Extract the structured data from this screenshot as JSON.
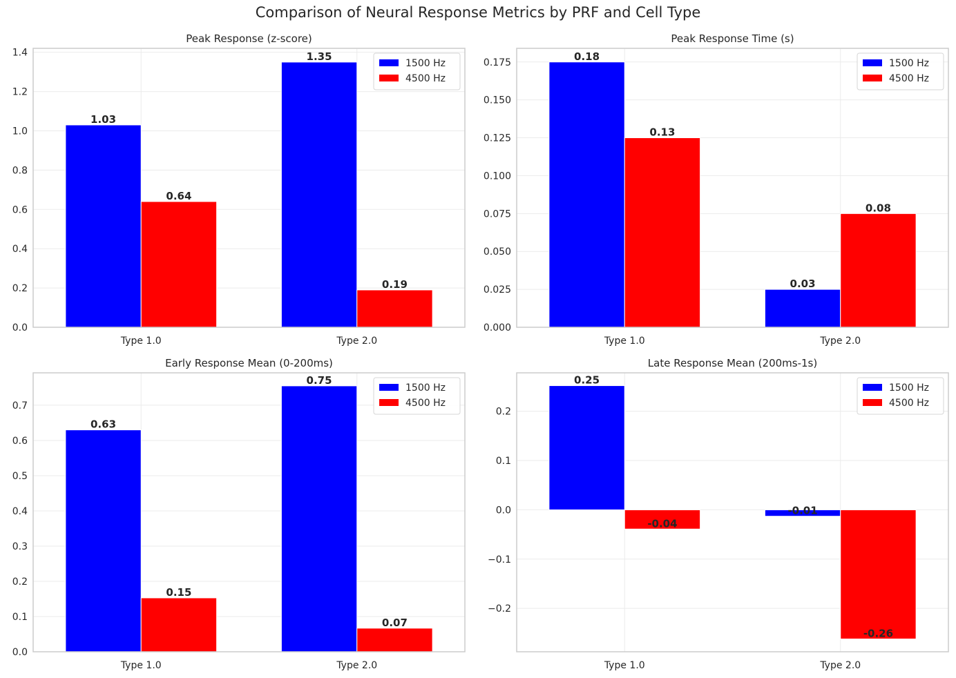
{
  "suptitle": "Comparison of Neural Response Metrics by PRF and Cell Type",
  "colors": {
    "series_1500": "#0000ff",
    "series_4500": "#ff0000",
    "grid": "#ebebeb",
    "spine": "#cccccc"
  },
  "chart_data": [
    {
      "type": "bar",
      "title": "Peak Response (z-score)",
      "categories": [
        "Type 1.0",
        "Type 2.0"
      ],
      "series": [
        {
          "name": "1500 Hz",
          "values": [
            1.03,
            1.35
          ],
          "labels": [
            "1.03",
            "1.35"
          ]
        },
        {
          "name": "4500 Hz",
          "values": [
            0.64,
            0.19
          ],
          "labels": [
            "0.64",
            "0.19"
          ]
        }
      ],
      "ylim": [
        0,
        1.42
      ],
      "yticks": [
        0.0,
        0.2,
        0.4,
        0.6,
        0.8,
        1.0,
        1.2,
        1.4
      ],
      "ytick_labels": [
        "0.0",
        "0.2",
        "0.4",
        "0.6",
        "0.8",
        "1.0",
        "1.2",
        "1.4"
      ],
      "legend": "top-right",
      "grid": true
    },
    {
      "type": "bar",
      "title": "Peak Response Time (s)",
      "categories": [
        "Type 1.0",
        "Type 2.0"
      ],
      "series": [
        {
          "name": "1500 Hz",
          "values": [
            0.175,
            0.025
          ],
          "labels": [
            "0.18",
            "0.03"
          ]
        },
        {
          "name": "4500 Hz",
          "values": [
            0.125,
            0.075
          ],
          "labels": [
            "0.13",
            "0.08"
          ]
        }
      ],
      "ylim": [
        0,
        0.184
      ],
      "yticks": [
        0.0,
        0.025,
        0.05,
        0.075,
        0.1,
        0.125,
        0.15,
        0.175
      ],
      "ytick_labels": [
        "0.000",
        "0.025",
        "0.050",
        "0.075",
        "0.100",
        "0.125",
        "0.150",
        "0.175"
      ],
      "legend": "top-right",
      "grid": true
    },
    {
      "type": "bar",
      "title": "Early Response Mean (0-200ms)",
      "categories": [
        "Type 1.0",
        "Type 2.0"
      ],
      "series": [
        {
          "name": "1500 Hz",
          "values": [
            0.63,
            0.755
          ],
          "labels": [
            "0.63",
            "0.75"
          ]
        },
        {
          "name": "4500 Hz",
          "values": [
            0.153,
            0.067
          ],
          "labels": [
            "0.15",
            "0.07"
          ]
        }
      ],
      "ylim": [
        0,
        0.792
      ],
      "yticks": [
        0.0,
        0.1,
        0.2,
        0.3,
        0.4,
        0.5,
        0.6,
        0.7
      ],
      "ytick_labels": [
        "0.0",
        "0.1",
        "0.2",
        "0.3",
        "0.4",
        "0.5",
        "0.6",
        "0.7"
      ],
      "legend": "top-right",
      "grid": true
    },
    {
      "type": "bar",
      "title": "Late Response Mean (200ms-1s)",
      "categories": [
        "Type 1.0",
        "Type 2.0"
      ],
      "series": [
        {
          "name": "1500 Hz",
          "values": [
            0.252,
            -0.013
          ],
          "labels": [
            "0.25",
            "-0.01"
          ]
        },
        {
          "name": "4500 Hz",
          "values": [
            -0.039,
            -0.262
          ],
          "labels": [
            "-0.04",
            "-0.26"
          ]
        }
      ],
      "ylim": [
        -0.288,
        0.278
      ],
      "yticks": [
        -0.2,
        -0.1,
        0.0,
        0.1,
        0.2
      ],
      "ytick_labels": [
        "−0.2",
        "−0.1",
        "0.0",
        "0.1",
        "0.2"
      ],
      "legend": "top-right",
      "grid": true
    }
  ]
}
